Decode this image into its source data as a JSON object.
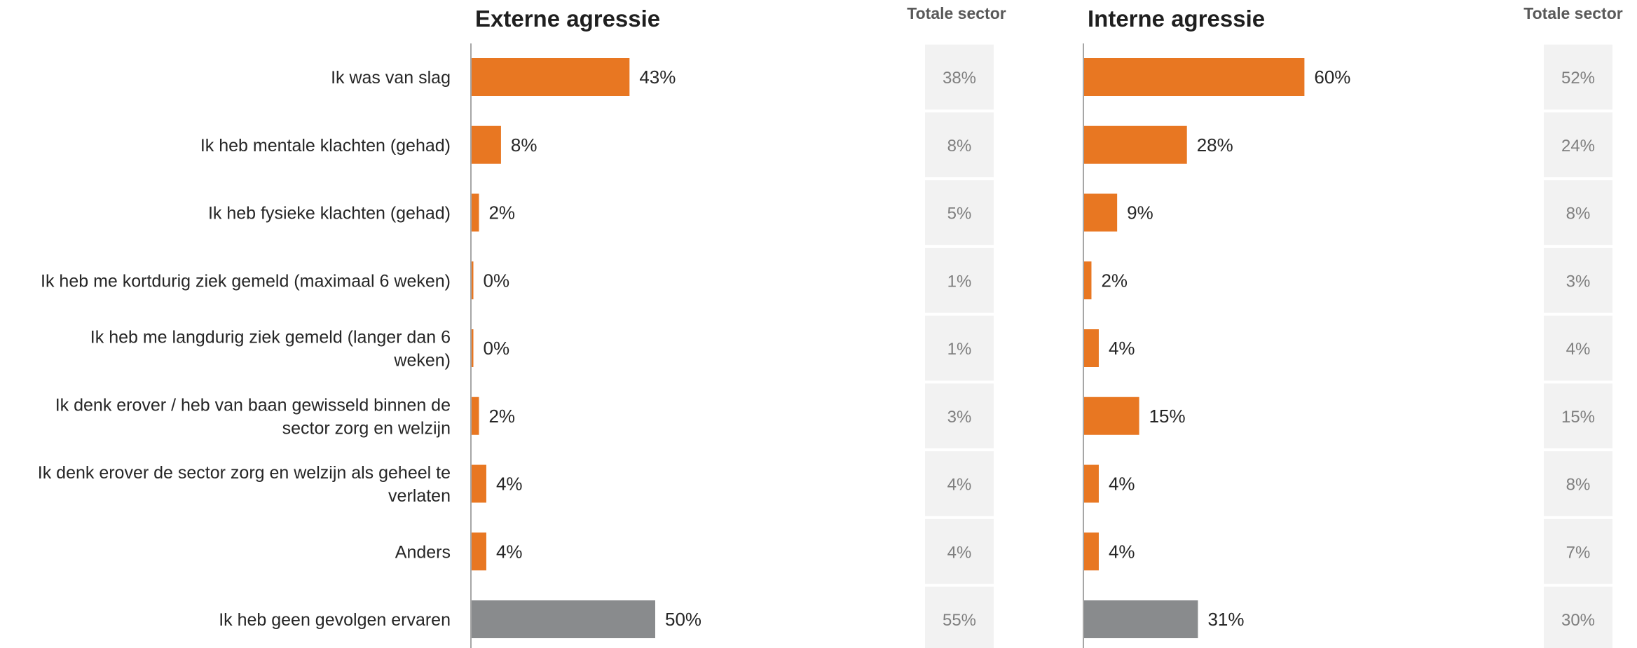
{
  "chart_data": {
    "type": "bar",
    "orientation": "horizontal",
    "categories": [
      [
        "Ik was van slag"
      ],
      [
        "Ik heb mentale klachten (gehad)"
      ],
      [
        "Ik heb fysieke klachten (gehad)"
      ],
      [
        "Ik heb me kortdurig ziek gemeld (maximaal 6 weken)"
      ],
      [
        "Ik heb me langdurig ziek gemeld (langer dan 6",
        "weken)"
      ],
      [
        "Ik denk erover / heb van baan gewisseld binnen de",
        "sector zorg en welzijn"
      ],
      [
        "Ik denk erover de sector zorg en welzijn als geheel te",
        "verlaten"
      ],
      [
        "Anders"
      ],
      [
        "Ik heb geen gevolgen ervaren"
      ]
    ],
    "panels": [
      {
        "title": "Externe agressie",
        "sector_title": "Totale sector",
        "values": [
          43,
          8,
          2,
          0,
          0,
          2,
          4,
          4,
          50
        ],
        "value_labels": [
          "43%",
          "8%",
          "2%",
          "0%",
          "0%",
          "2%",
          "4%",
          "4%",
          "50%"
        ],
        "sector_values": [
          "38%",
          "8%",
          "5%",
          "1%",
          "1%",
          "3%",
          "4%",
          "4%",
          "55%"
        ]
      },
      {
        "title": "Interne agressie",
        "sector_title": "Totale sector",
        "values": [
          60,
          28,
          9,
          2,
          4,
          15,
          4,
          4,
          31
        ],
        "value_labels": [
          "60%",
          "28%",
          "9%",
          "2%",
          "4%",
          "15%",
          "4%",
          "4%",
          "31%"
        ],
        "sector_values": [
          "52%",
          "24%",
          "8%",
          "3%",
          "4%",
          "15%",
          "8%",
          "7%",
          "30%"
        ]
      }
    ],
    "xlim": [
      0,
      100
    ],
    "colors": {
      "bar": "#e87722",
      "bar_last": "#898b8d",
      "axis": "#a6a6a6",
      "sector_bg": "#f2f2f2"
    }
  }
}
